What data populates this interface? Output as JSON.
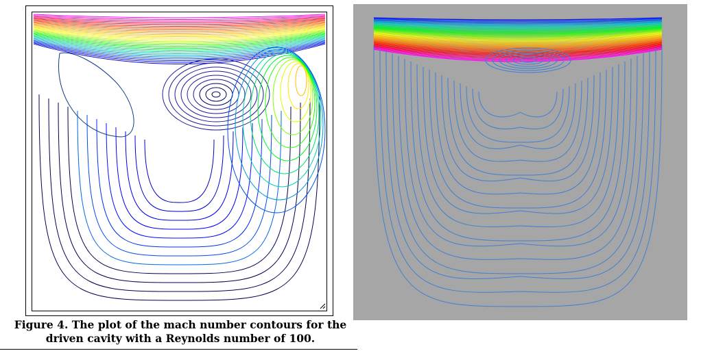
{
  "figure": {
    "caption_line1": "Figure 4. The plot of the mach number contours for the",
    "caption_line2": "driven cavity with a Reynolds number of 100."
  },
  "left_plot": {
    "background": "#ffffff",
    "border_color": "#000000"
  },
  "right_plot": {
    "background": "#a6a6a6",
    "contour_color": "#3f7fd6"
  },
  "colors": {
    "rainbow": [
      "#ff00ff",
      "#ff0000",
      "#ff8c00",
      "#ffff00",
      "#00ff00",
      "#00c8c8",
      "#0000ff",
      "#000080"
    ]
  }
}
